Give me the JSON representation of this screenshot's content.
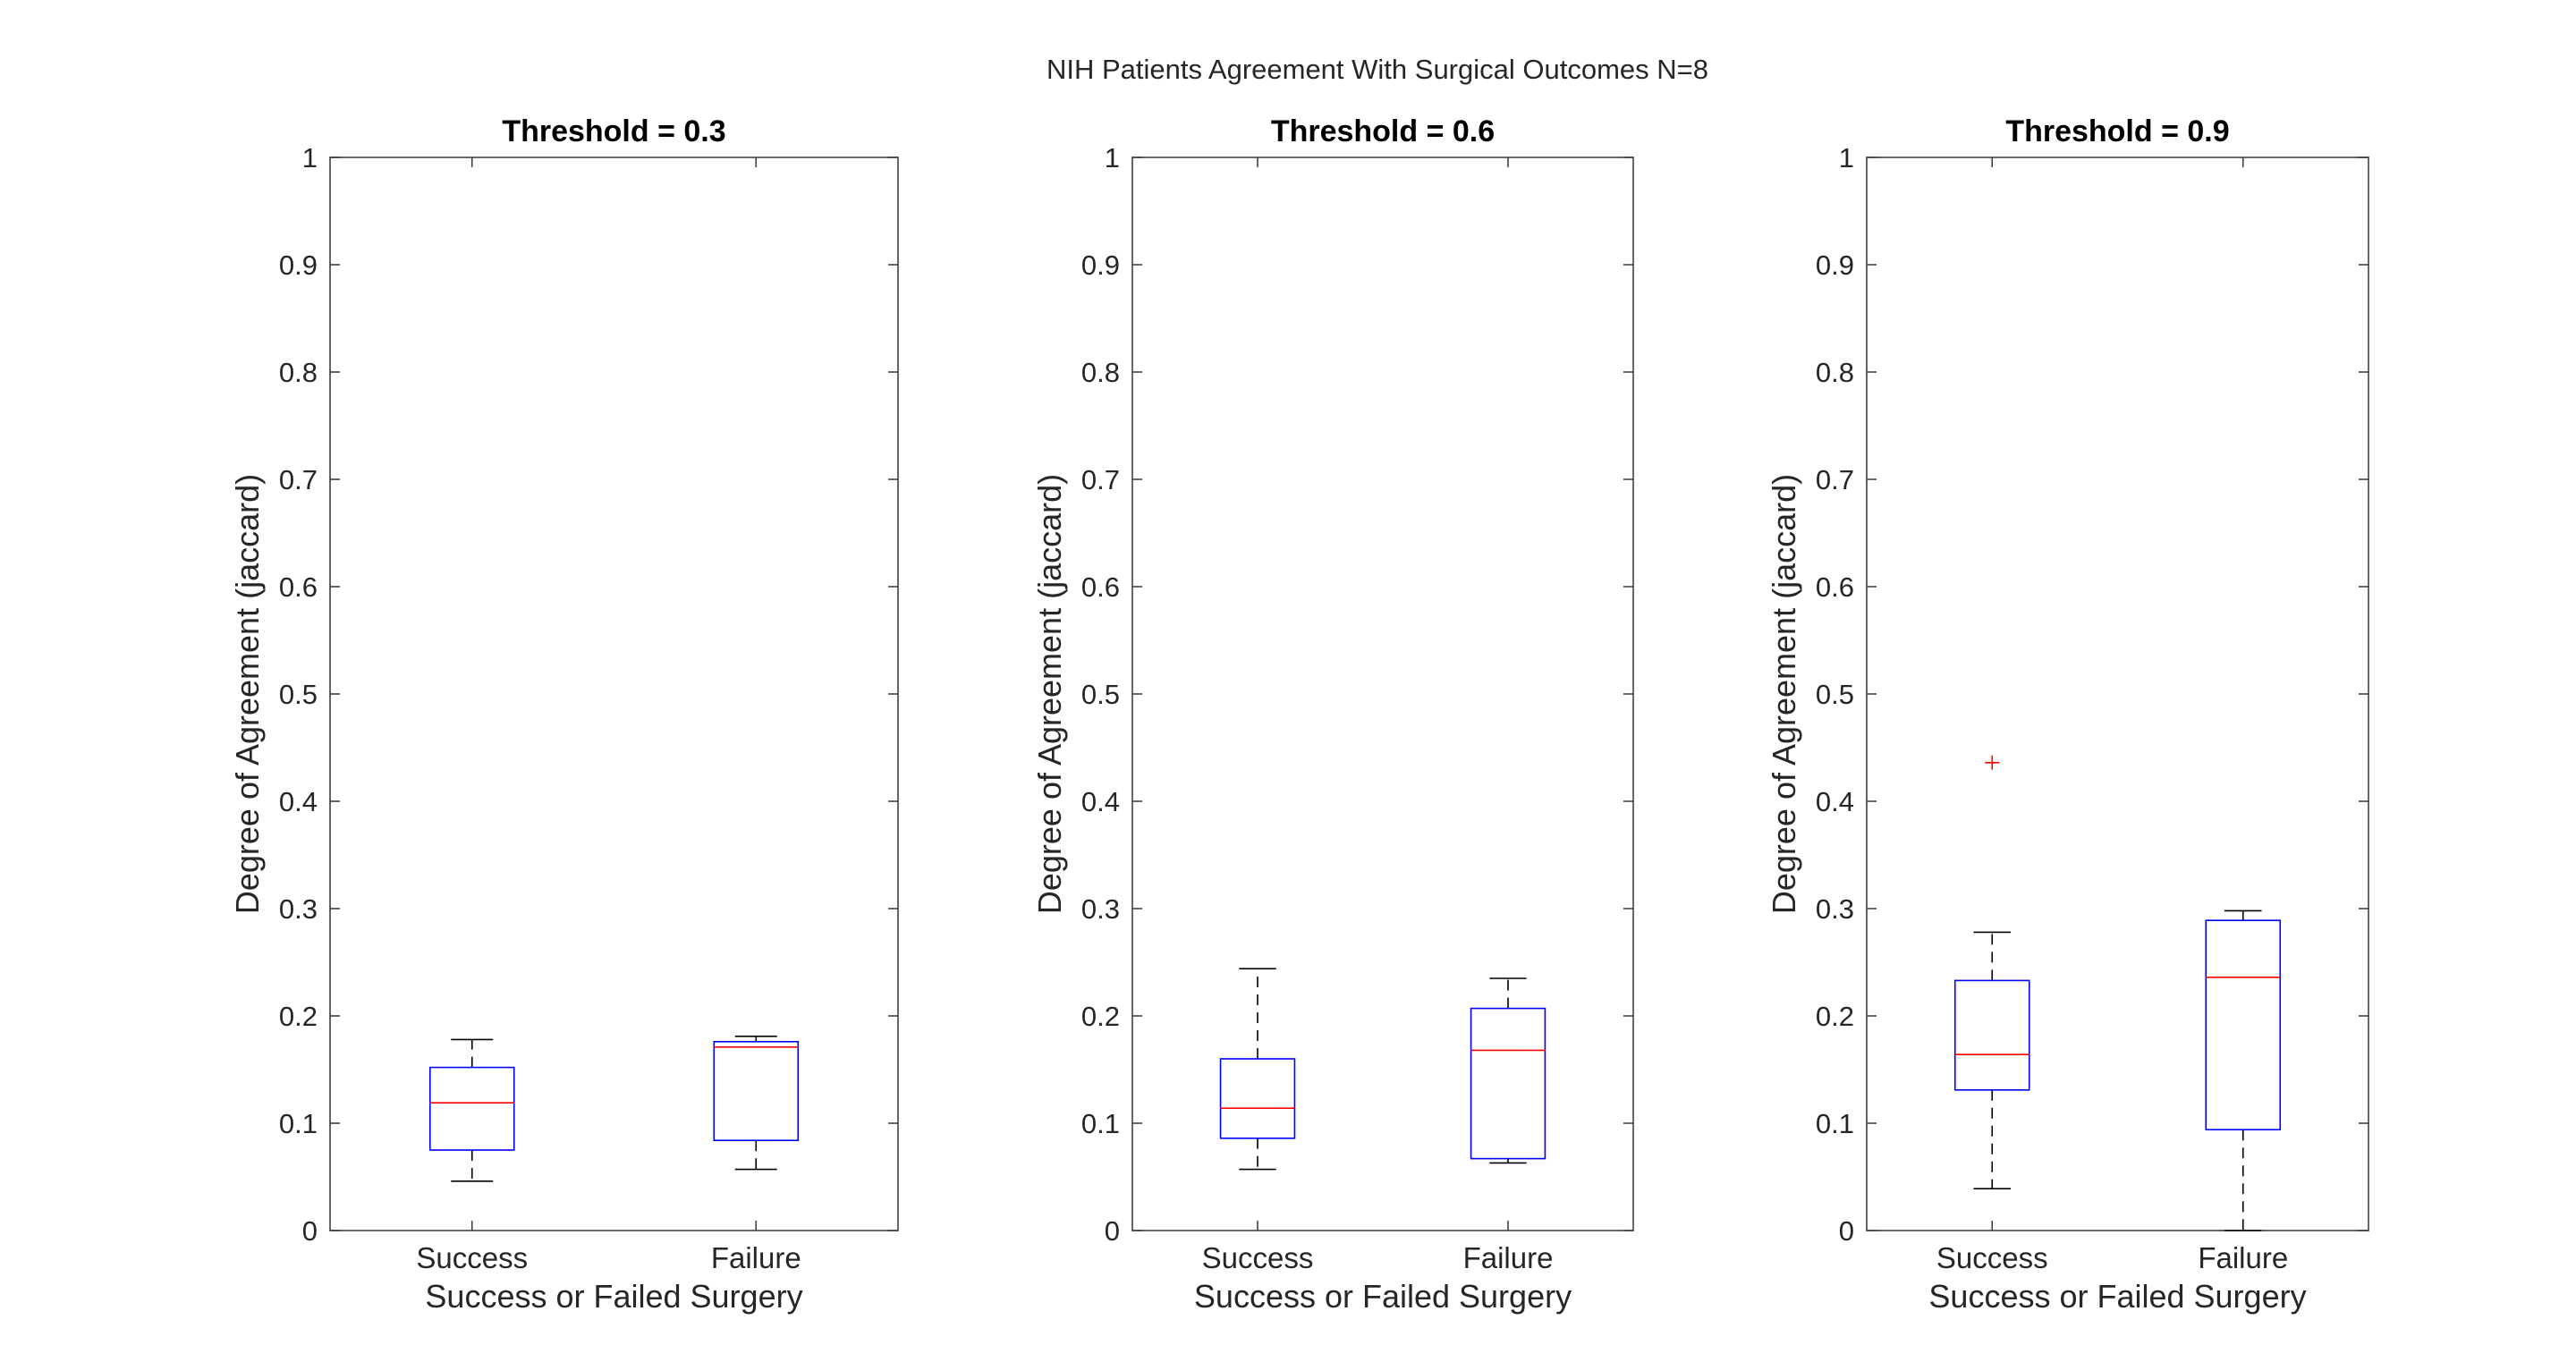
{
  "suptitle": "NIH Patients Agreement With Surgical Outcomes N=8",
  "colors": {
    "axis": "#404040",
    "box": "#0000ff",
    "median": "#ff0000",
    "whisker": "#000000",
    "outlier": "#ff0000",
    "text": "#262626",
    "title": "#000000"
  },
  "chart_data": [
    {
      "type": "box",
      "title": "Threshold = 0.3",
      "xlabel": "Success or Failed Surgery",
      "ylabel": "Degree of Agreement (jaccard)",
      "ylim": [
        0,
        1
      ],
      "yticks": [
        0,
        0.1,
        0.2,
        0.3,
        0.4,
        0.5,
        0.6,
        0.7,
        0.8,
        0.9,
        1
      ],
      "ytick_labels": [
        "0",
        "0.1",
        "0.2",
        "0.3",
        "0.4",
        "0.5",
        "0.6",
        "0.7",
        "0.8",
        "0.9",
        "1"
      ],
      "categories": [
        "Success",
        "Failure"
      ],
      "boxes": [
        {
          "whisker_low": 0.046,
          "q1": 0.075,
          "median": 0.119,
          "q3": 0.152,
          "whisker_high": 0.178,
          "outliers": []
        },
        {
          "whisker_low": 0.057,
          "q1": 0.084,
          "median": 0.171,
          "q3": 0.176,
          "whisker_high": 0.181,
          "outliers": []
        }
      ]
    },
    {
      "type": "box",
      "title": "Threshold = 0.6",
      "xlabel": "Success or Failed Surgery",
      "ylabel": "Degree of Agreement (jaccard)",
      "ylim": [
        0,
        1
      ],
      "yticks": [
        0,
        0.1,
        0.2,
        0.3,
        0.4,
        0.5,
        0.6,
        0.7,
        0.8,
        0.9,
        1
      ],
      "ytick_labels": [
        "0",
        "0.1",
        "0.2",
        "0.3",
        "0.4",
        "0.5",
        "0.6",
        "0.7",
        "0.8",
        "0.9",
        "1"
      ],
      "categories": [
        "Success",
        "Failure"
      ],
      "boxes": [
        {
          "whisker_low": 0.057,
          "q1": 0.086,
          "median": 0.114,
          "q3": 0.16,
          "whisker_high": 0.244,
          "outliers": []
        },
        {
          "whisker_low": 0.063,
          "q1": 0.067,
          "median": 0.168,
          "q3": 0.207,
          "whisker_high": 0.235,
          "outliers": []
        }
      ]
    },
    {
      "type": "box",
      "title": "Threshold = 0.9",
      "xlabel": "Success or Failed Surgery",
      "ylabel": "Degree of Agreement (jaccard)",
      "ylim": [
        0,
        1
      ],
      "yticks": [
        0,
        0.1,
        0.2,
        0.3,
        0.4,
        0.5,
        0.6,
        0.7,
        0.8,
        0.9,
        1
      ],
      "ytick_labels": [
        "0",
        "0.1",
        "0.2",
        "0.3",
        "0.4",
        "0.5",
        "0.6",
        "0.7",
        "0.8",
        "0.9",
        "1"
      ],
      "categories": [
        "Success",
        "Failure"
      ],
      "boxes": [
        {
          "whisker_low": 0.039,
          "q1": 0.131,
          "median": 0.164,
          "q3": 0.233,
          "whisker_high": 0.278,
          "outliers": [
            0.436
          ]
        },
        {
          "whisker_low": 0.0,
          "q1": 0.094,
          "median": 0.236,
          "q3": 0.289,
          "whisker_high": 0.298,
          "outliers": []
        }
      ]
    }
  ]
}
